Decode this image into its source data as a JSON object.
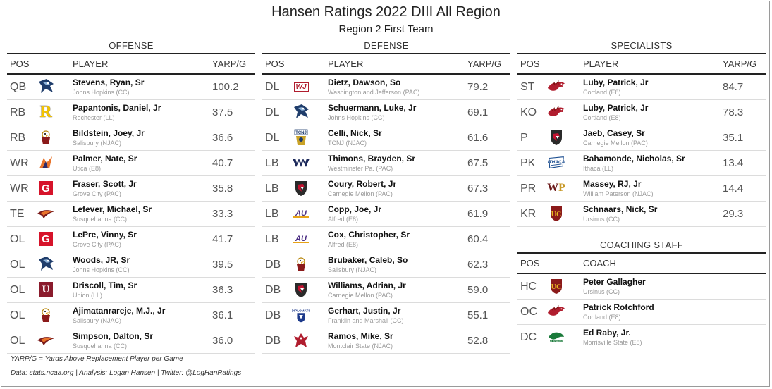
{
  "title": "Hansen Ratings 2022 DIII All Region",
  "subtitle": "Region 2 First Team",
  "columns": {
    "pos": "POS",
    "player": "PLAYER",
    "yarp": "YARP/G",
    "coach": "COACH"
  },
  "offense": {
    "title": "OFFENSE",
    "rows": [
      {
        "pos": "QB",
        "name": "Stevens, Ryan, Sr",
        "school": "Johns Hopkins (CC)",
        "yarp": "100.2",
        "logo": "jhu-bluejay-icon"
      },
      {
        "pos": "RB",
        "name": "Papantonis, Daniel, Jr",
        "school": "Rochester (LL)",
        "yarp": "37.5",
        "logo": "rochester-r-icon"
      },
      {
        "pos": "RB",
        "name": "Bildstein, Joey, Jr",
        "school": "Salisbury (NJAC)",
        "yarp": "36.6",
        "logo": "salisbury-seagull-icon"
      },
      {
        "pos": "WR",
        "name": "Palmer, Nate, Sr",
        "school": "Utica (E8)",
        "yarp": "40.7",
        "logo": "utica-pioneer-icon"
      },
      {
        "pos": "WR",
        "name": "Fraser, Scott, Jr",
        "school": "Grove City (PAC)",
        "yarp": "35.8",
        "logo": "grove-city-g-icon"
      },
      {
        "pos": "TE",
        "name": "Lefever, Michael, Sr",
        "school": "Susquehanna (CC)",
        "yarp": "33.3",
        "logo": "susquehanna-hawk-icon"
      },
      {
        "pos": "OL",
        "name": "LePre, Vinny, Sr",
        "school": "Grove City (PAC)",
        "yarp": "41.7",
        "logo": "grove-city-g-icon"
      },
      {
        "pos": "OL",
        "name": "Woods, JR, Sr",
        "school": "Johns Hopkins (CC)",
        "yarp": "39.5",
        "logo": "jhu-bluejay-icon"
      },
      {
        "pos": "OL",
        "name": "Driscoll, Tim, Sr",
        "school": "Union (LL)",
        "yarp": "36.3",
        "logo": "union-u-icon"
      },
      {
        "pos": "OL",
        "name": "Ajimatanrareje, M.J., Jr",
        "school": "Salisbury (NJAC)",
        "yarp": "36.1",
        "logo": "salisbury-seagull-icon"
      },
      {
        "pos": "OL",
        "name": "Simpson, Dalton, Sr",
        "school": "Susquehanna (CC)",
        "yarp": "36.0",
        "logo": "susquehanna-hawk-icon"
      }
    ]
  },
  "defense": {
    "title": "DEFENSE",
    "rows": [
      {
        "pos": "DL",
        "name": "Dietz, Dawson, So",
        "school": "Washington and Jefferson (PAC)",
        "yarp": "79.2",
        "logo": "wj-logo-icon"
      },
      {
        "pos": "DL",
        "name": "Schuermann, Luke, Jr",
        "school": "Johns Hopkins (CC)",
        "yarp": "69.1",
        "logo": "jhu-bluejay-icon"
      },
      {
        "pos": "DL",
        "name": "Celli, Nick, Sr",
        "school": "TCNJ (NJAC)",
        "yarp": "61.6",
        "logo": "tcnj-lion-icon"
      },
      {
        "pos": "LB",
        "name": "Thimons, Brayden, Sr",
        "school": "Westminster Pa. (PAC)",
        "yarp": "67.5",
        "logo": "westminster-w-icon"
      },
      {
        "pos": "LB",
        "name": "Coury, Robert, Jr",
        "school": "Carnegie Mellon (PAC)",
        "yarp": "67.3",
        "logo": "cmu-shield-icon"
      },
      {
        "pos": "LB",
        "name": "Copp, Joe, Jr",
        "school": "Alfred (E8)",
        "yarp": "61.9",
        "logo": "alfred-au-icon"
      },
      {
        "pos": "LB",
        "name": "Cox, Christopher, Sr",
        "school": "Alfred (E8)",
        "yarp": "60.4",
        "logo": "alfred-au-icon"
      },
      {
        "pos": "DB",
        "name": "Brubaker, Caleb, So",
        "school": "Salisbury (NJAC)",
        "yarp": "62.3",
        "logo": "salisbury-seagull-icon"
      },
      {
        "pos": "DB",
        "name": "Williams, Adrian, Jr",
        "school": "Carnegie Mellon (PAC)",
        "yarp": "59.0",
        "logo": "cmu-shield-icon"
      },
      {
        "pos": "DB",
        "name": "Gerhart, Justin, Jr",
        "school": "Franklin and Marshall (CC)",
        "yarp": "55.1",
        "logo": "fandm-diplomats-icon"
      },
      {
        "pos": "DB",
        "name": "Ramos, Mike, Sr",
        "school": "Montclair State (NJAC)",
        "yarp": "52.8",
        "logo": "montclair-hawk-icon"
      }
    ]
  },
  "specialists": {
    "title": "SPECIALISTS",
    "rows": [
      {
        "pos": "ST",
        "name": "Luby, Patrick, Jr",
        "school": "Cortland (E8)",
        "yarp": "84.7",
        "logo": "cortland-dragon-icon"
      },
      {
        "pos": "KO",
        "name": "Luby, Patrick, Jr",
        "school": "Cortland (E8)",
        "yarp": "78.3",
        "logo": "cortland-dragon-icon"
      },
      {
        "pos": "P",
        "name": "Jaeb, Casey, Sr",
        "school": "Carnegie Mellon (PAC)",
        "yarp": "35.1",
        "logo": "cmu-shield-icon"
      },
      {
        "pos": "PK",
        "name": "Bahamonde, Nicholas, Sr",
        "school": "Ithaca (LL)",
        "yarp": "13.4",
        "logo": "ithaca-logo-icon"
      },
      {
        "pos": "PR",
        "name": "Massey, RJ, Jr",
        "school": "William Paterson (NJAC)",
        "yarp": "14.4",
        "logo": "wp-logo-icon"
      },
      {
        "pos": "KR",
        "name": "Schnaars, Nick, Sr",
        "school": "Ursinus (CC)",
        "yarp": "29.3",
        "logo": "ursinus-uc-icon"
      }
    ]
  },
  "coaching": {
    "title": "COACHING STAFF",
    "rows": [
      {
        "pos": "HC",
        "name": "Peter Gallagher",
        "school": "Ursinus (CC)",
        "logo": "ursinus-uc-icon"
      },
      {
        "pos": "OC",
        "name": "Patrick Rotchford",
        "school": "Cortland (E8)",
        "logo": "cortland-dragon-icon"
      },
      {
        "pos": "DC",
        "name": "Ed Raby, Jr.",
        "school": "Morrisville State (E8)",
        "logo": "morrisville-mustang-icon"
      }
    ]
  },
  "footnotes": {
    "definition": "YARP/G = Yards Above Replacement Player per Game",
    "source": "Data: stats.ncaa.org | Analysis: Logan Hansen | Twitter: @LogHanRatings"
  }
}
